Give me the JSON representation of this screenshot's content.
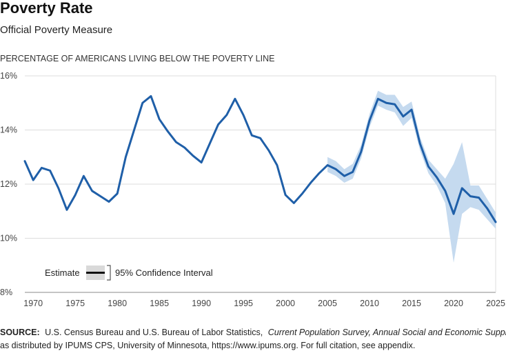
{
  "chart_data": {
    "type": "line",
    "title": "Poverty Rate",
    "subtitle": "Official Poverty Measure",
    "ylabel": "PERCENTAGE OF AMERICANS LIVING BELOW THE POVERTY LINE",
    "xlabel": "",
    "xlim": [
      1969,
      2025
    ],
    "ylim": [
      8,
      16
    ],
    "x_ticks": [
      1970,
      1975,
      1980,
      1985,
      1990,
      1995,
      2000,
      2005,
      2010,
      2015,
      2020,
      2025
    ],
    "x_tick_labels": [
      "1970",
      "1975",
      "1980",
      "1985",
      "1990",
      "1995",
      "2000",
      "2005",
      "2010",
      "2015",
      "2020",
      "2025"
    ],
    "y_ticks": [
      8,
      10,
      12,
      14,
      16
    ],
    "y_tick_labels": [
      "8%",
      "10%",
      "12%",
      "14%",
      "16%"
    ],
    "grid": "horizontal",
    "legend": {
      "position": "bottom-left",
      "entries": [
        "Estimate",
        "95% Confidence Interval"
      ]
    },
    "series": [
      {
        "name": "Estimate",
        "color": "#1f5fa8",
        "x": [
          1969,
          1970,
          1971,
          1972,
          1973,
          1974,
          1975,
          1976,
          1977,
          1978,
          1979,
          1980,
          1981,
          1982,
          1983,
          1984,
          1985,
          1986,
          1987,
          1988,
          1989,
          1990,
          1991,
          1992,
          1993,
          1994,
          1995,
          1996,
          1997,
          1998,
          1999,
          2000,
          2001,
          2002,
          2003,
          2004,
          2005,
          2006,
          2007,
          2008,
          2009,
          2010,
          2011,
          2012,
          2013,
          2014,
          2015,
          2016,
          2017,
          2018,
          2019,
          2020,
          2021,
          2022,
          2023,
          2024,
          2025
        ],
        "values": [
          12.85,
          12.15,
          12.6,
          12.5,
          11.85,
          11.05,
          11.6,
          12.3,
          11.75,
          11.55,
          11.35,
          11.65,
          13.0,
          14.0,
          15.0,
          15.25,
          14.4,
          13.95,
          13.55,
          13.35,
          13.05,
          12.8,
          13.5,
          14.2,
          14.55,
          15.15,
          14.55,
          13.8,
          13.7,
          13.25,
          12.7,
          11.6,
          11.3,
          11.65,
          12.05,
          12.4,
          12.7,
          12.55,
          12.3,
          12.45,
          13.2,
          14.35,
          15.15,
          15.0,
          14.95,
          14.5,
          14.75,
          13.5,
          12.65,
          12.25,
          11.75,
          10.9,
          11.85,
          11.55,
          11.5,
          11.1,
          10.6
        ]
      },
      {
        "name": "95% Confidence Interval",
        "color": "#c5daef",
        "x": [
          2005,
          2006,
          2007,
          2008,
          2009,
          2010,
          2011,
          2012,
          2013,
          2014,
          2015,
          2016,
          2017,
          2018,
          2019,
          2020,
          2021,
          2022,
          2023,
          2024,
          2025
        ],
        "lower": [
          12.45,
          12.3,
          12.05,
          12.2,
          12.95,
          14.1,
          14.9,
          14.75,
          14.65,
          14.15,
          14.45,
          13.25,
          12.4,
          11.95,
          11.3,
          9.1,
          10.9,
          11.15,
          11.05,
          10.7,
          10.35
        ],
        "upper": [
          13.0,
          12.85,
          12.55,
          12.75,
          13.45,
          14.6,
          15.45,
          15.3,
          15.3,
          14.85,
          15.05,
          13.75,
          12.9,
          12.55,
          12.2,
          12.75,
          13.55,
          11.95,
          11.95,
          11.45,
          10.95
        ]
      }
    ]
  },
  "source": {
    "label": "SOURCE:",
    "text1": "U.S. Census Bureau and U.S. Bureau of Labor Statistics,",
    "italic": "Current Population Survey, Annual Social and Economic Supplement",
    "text2": "as distributed by IPUMS CPS, University of Minnesota, https://www.ipums.org. For full citation, see appendix."
  }
}
